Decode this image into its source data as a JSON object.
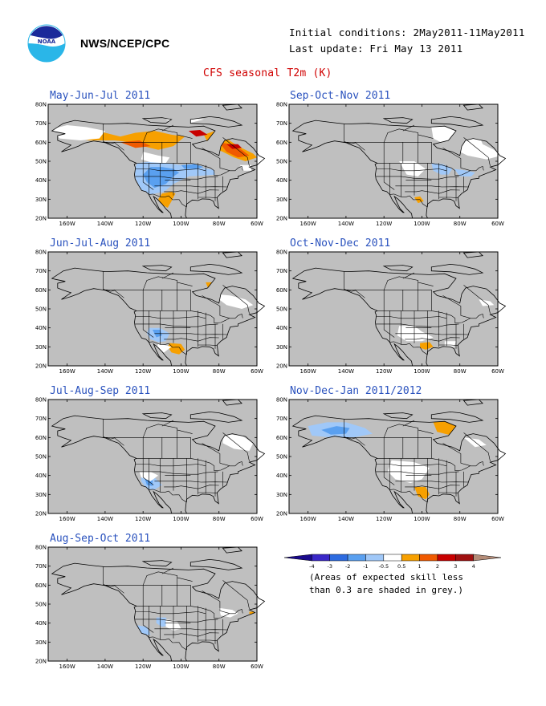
{
  "header": {
    "org": "NWS/NCEP/CPC",
    "initial_conditions": "Initial conditions: 2May2011-11May2011",
    "last_update": "Last update: Fri May 13 2011",
    "logo_text": "NOAA"
  },
  "title": "CFS seasonal T2m (K)",
  "axis": {
    "lat_labels": [
      "80N",
      "70N",
      "60N",
      "50N",
      "40N",
      "30N",
      "20N"
    ],
    "lon_labels": [
      "160W",
      "140W",
      "120W",
      "100W",
      "80W",
      "60W"
    ]
  },
  "colors": {
    "ocean_no_skill": "#bfbfbf",
    "near_normal": "#ffffff",
    "neg_4": "#1a0a8c",
    "neg_3": "#3a28c8",
    "neg_2": "#2d6be0",
    "neg_1": "#5aa0f0",
    "neg_05": "#a0c8f8",
    "pos_05": "#f7a000",
    "pos_1": "#f05a00",
    "pos_2": "#c80000",
    "pos_3": "#a01010",
    "pos_4": "#b48c78"
  },
  "panels": [
    {
      "title": "May-Jun-Jul 2011"
    },
    {
      "title": "Sep-Oct-Nov 2011"
    },
    {
      "title": "Jun-Jul-Aug 2011"
    },
    {
      "title": "Oct-Nov-Dec 2011"
    },
    {
      "title": "Jul-Aug-Sep 2011"
    },
    {
      "title": "Nov-Dec-Jan 2011/2012"
    },
    {
      "title": "Aug-Sep-Oct 2011"
    }
  ],
  "colorbar": {
    "labels": [
      "-4",
      "-3",
      "-2",
      "-1",
      "-0.5",
      "0.5",
      "1",
      "2",
      "3",
      "4"
    ],
    "colors": [
      "#1a0a8c",
      "#3a28c8",
      "#2d6be0",
      "#5aa0f0",
      "#a0c8f8",
      "#ffffff",
      "#f7a000",
      "#f05a00",
      "#c80000",
      "#a01010",
      "#b48c78"
    ],
    "note_line1": "(Areas of expected skill less",
    "note_line2": "than 0.3 are shaded in grey.)"
  }
}
